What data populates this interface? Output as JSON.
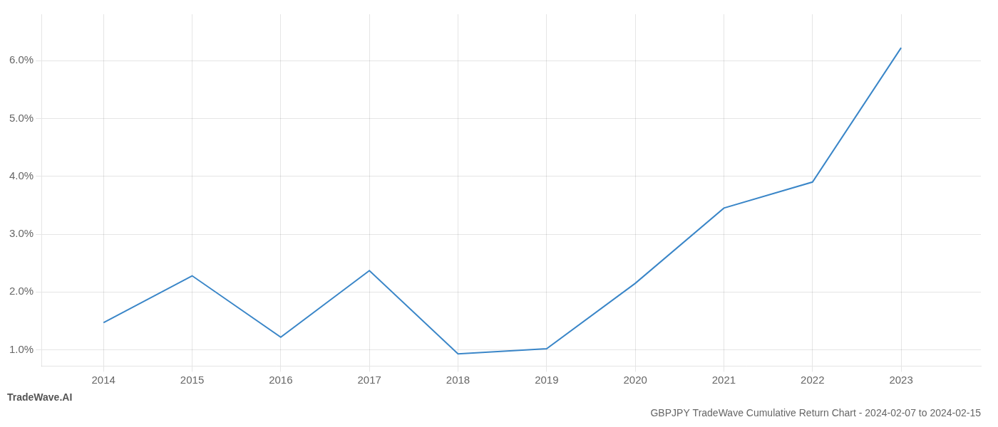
{
  "chart_data": {
    "type": "line",
    "title": "GBPJPY TradeWave Cumulative Return Chart - 2024-02-07 to 2024-02-15",
    "annotations": [
      "TradeWave.AI"
    ],
    "x": [
      2014,
      2015,
      2016,
      2017,
      2018,
      2019,
      2020,
      2021,
      2022,
      2023
    ],
    "values": [
      1.47,
      2.28,
      1.22,
      2.37,
      0.93,
      1.02,
      2.15,
      3.45,
      3.9,
      6.22
    ],
    "color": "#3a86c8",
    "xlim": [
      2013.3,
      2023.9
    ],
    "xticks": [
      2014,
      2015,
      2016,
      2017,
      2018,
      2019,
      2020,
      2021,
      2022,
      2023
    ],
    "ylim": [
      0.72,
      6.8
    ],
    "yticks": [
      {
        "value": 1.0,
        "label": "1.0%"
      },
      {
        "value": 2.0,
        "label": "2.0%"
      },
      {
        "value": 3.0,
        "label": "3.0%"
      },
      {
        "value": 4.0,
        "label": "4.0%"
      },
      {
        "value": 5.0,
        "label": "5.0%"
      },
      {
        "value": 6.0,
        "label": "6.0%"
      }
    ],
    "grid": true
  }
}
